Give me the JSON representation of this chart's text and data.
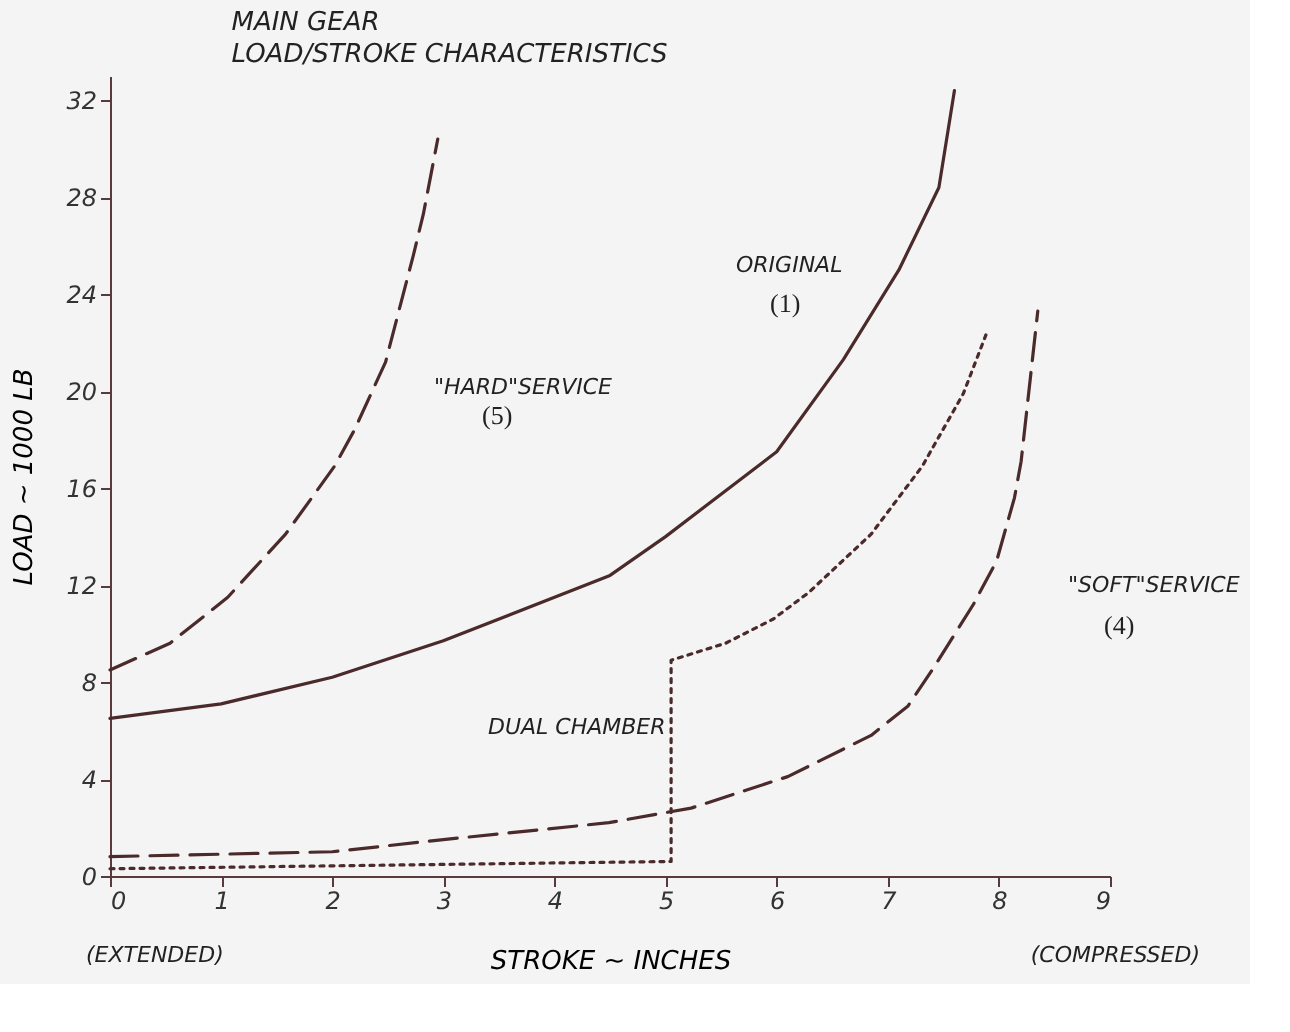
{
  "chart_data": {
    "type": "line",
    "title": "MAIN GEAR",
    "subtitle": "LOAD/STROKE CHARACTERISTICS",
    "xlabel": "STROKE ~ INCHES",
    "ylabel": "LOAD ~ 1000 LB",
    "xlim": [
      0,
      9
    ],
    "ylim": [
      0,
      33
    ],
    "xticks": [
      0,
      1,
      2,
      3,
      4,
      5,
      6,
      7,
      8,
      9
    ],
    "yticks": [
      0,
      4,
      8,
      12,
      16,
      20,
      24,
      28,
      32
    ],
    "grid": false,
    "marker": "none",
    "series": [
      {
        "color": "#4a2a2a",
        "line_style": "solid",
        "x": [
          0,
          1,
          2,
          3,
          4.5,
          5,
          6,
          6.6,
          7.1,
          7.46,
          7.6
        ],
        "values": [
          6.5,
          7.1,
          8.2,
          9.7,
          12.4,
          14,
          17.5,
          21.3,
          25,
          28.4,
          32.4
        ]
      },
      {
        "color": "#4a2a2a",
        "line_style": "dashed",
        "x": [
          0,
          0.54,
          1.06,
          1.58,
          2.02,
          2.2,
          2.48,
          2.73,
          2.82,
          2.95
        ],
        "values": [
          8.5,
          9.6,
          11.5,
          14.1,
          16.9,
          18.4,
          21.2,
          25.6,
          27.3,
          30.4
        ]
      },
      {
        "color": "#4a2a2a",
        "line_style": "dashed",
        "x": [
          0,
          2,
          3,
          4.49,
          5.23,
          6.1,
          6.85,
          7.18,
          7.4,
          7.77,
          7.98,
          8.14,
          8.2,
          8.35
        ],
        "values": [
          0.8,
          1.0,
          1.5,
          2.2,
          2.8,
          4.1,
          5.8,
          7.0,
          8.5,
          11.2,
          13.0,
          15.6,
          17.1,
          23.3
        ]
      },
      {
        "color": "#4a2a2a",
        "line_style": "dotted",
        "x": [
          0,
          5.05,
          5.05,
          5.54,
          5.97,
          6.29,
          6.85,
          7.31,
          7.68,
          7.89
        ],
        "values": [
          0.3,
          0.6,
          8.9,
          9.6,
          10.6,
          11.7,
          14.1,
          16.9,
          19.9,
          22.4
        ]
      }
    ],
    "annotations": [
      "ORIGINAL",
      "(1)",
      "\"HARD\"SERVICE",
      "(5)",
      "\"SOFT\"SERVICE",
      "(4)",
      "DUAL CHAMBER",
      "(EXTENDED)",
      "(COMPRESSED)"
    ]
  }
}
